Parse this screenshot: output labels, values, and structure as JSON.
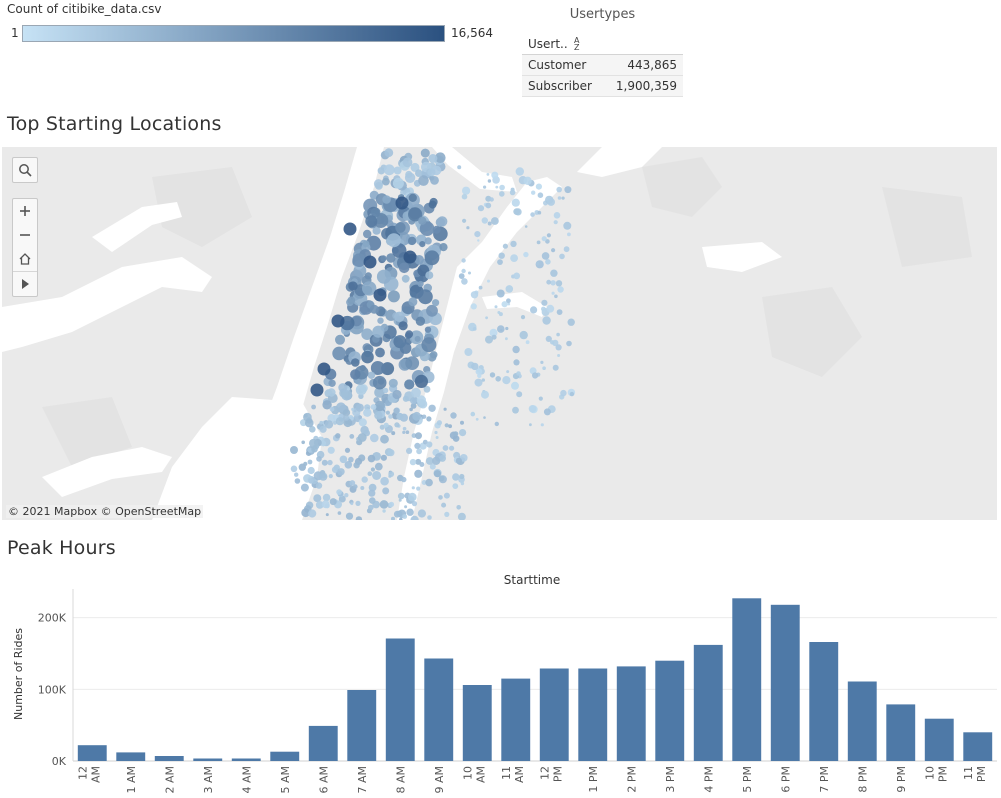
{
  "legend": {
    "title": "Count of citibike_data.csv",
    "min_label": "1",
    "max_label": "16,564",
    "color_start": "#c6e2f5",
    "color_end": "#2b5180"
  },
  "usertypes": {
    "title": "Usertypes",
    "header": "Usert..",
    "sort_icon": "sort-ascending-icon",
    "rows": [
      {
        "name": "Customer",
        "count": "443,865"
      },
      {
        "name": "Subscriber",
        "count": "1,900,359"
      }
    ]
  },
  "map": {
    "title": "Top Starting Locations",
    "attribution": "© 2021 Mapbox  © OpenStreetMap",
    "land_color": "#eaeaea",
    "water_color": "#ffffff",
    "controls": {
      "search_icon": "search-icon",
      "zoom_in_icon": "plus-icon",
      "zoom_out_icon": "minus-icon",
      "home_icon": "home-icon",
      "expand_icon": "play-icon"
    }
  },
  "chart": {
    "title": "Peak Hours"
  },
  "chart_data": {
    "type": "bar",
    "title": "Starttime",
    "xlabel": "",
    "ylabel": "Number of Rides",
    "bar_color": "#4e79a7",
    "grid": "horizontal",
    "ylim": [
      0,
      240000
    ],
    "yticks": [
      0,
      100000,
      200000
    ],
    "ytick_labels": [
      "0K",
      "100K",
      "200K"
    ],
    "categories": [
      [
        "12",
        "AM"
      ],
      [
        "1 AM"
      ],
      [
        "2 AM"
      ],
      [
        "3 AM"
      ],
      [
        "4 AM"
      ],
      [
        "5 AM"
      ],
      [
        "6 AM"
      ],
      [
        "7 AM"
      ],
      [
        "8 AM"
      ],
      [
        "9 AM"
      ],
      [
        "10",
        "AM"
      ],
      [
        "11",
        "AM"
      ],
      [
        "12",
        "PM"
      ],
      [
        "1 PM"
      ],
      [
        "2 PM"
      ],
      [
        "3 PM"
      ],
      [
        "4 PM"
      ],
      [
        "5 PM"
      ],
      [
        "6 PM"
      ],
      [
        "7 PM"
      ],
      [
        "8 PM"
      ],
      [
        "9 PM"
      ],
      [
        "10",
        "PM"
      ],
      [
        "11",
        "PM"
      ]
    ],
    "values": [
      22000,
      12000,
      7000,
      3500,
      3500,
      13000,
      49000,
      99000,
      171000,
      143000,
      106000,
      115000,
      129000,
      129000,
      132000,
      140000,
      162000,
      227000,
      218000,
      166000,
      111000,
      79000,
      59000,
      40000
    ]
  }
}
